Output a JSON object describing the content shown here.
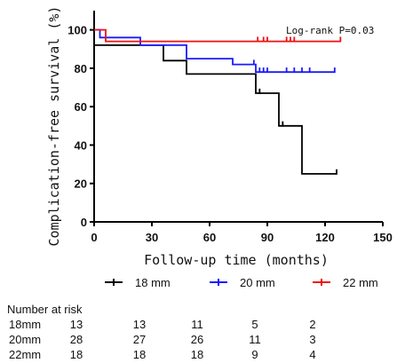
{
  "chart_data": {
    "type": "line",
    "chart_kind": "kaplan-meier",
    "xlabel": "Follow-up time (months)",
    "ylabel": "Complication-free survival (%)",
    "xlim": [
      0,
      150
    ],
    "ylim": [
      0,
      110
    ],
    "x_ticks": [
      0,
      30,
      60,
      90,
      120,
      150
    ],
    "y_ticks": [
      0,
      20,
      40,
      60,
      80,
      100
    ],
    "annotation": "Log-rank P=0.03",
    "legend_position": "bottom",
    "series": [
      {
        "name": "18 mm",
        "color": "#000000",
        "x": [
          0,
          36,
          36,
          48,
          48,
          84,
          84,
          96,
          96,
          108,
          108,
          126
        ],
        "y": [
          92,
          92,
          84,
          84,
          77,
          77,
          67,
          67,
          50,
          50,
          25,
          25
        ],
        "censored": [
          {
            "x": 86,
            "y": 68
          },
          {
            "x": 98,
            "y": 51
          },
          {
            "x": 126,
            "y": 26
          }
        ]
      },
      {
        "name": "20 mm",
        "color": "#1a1aff",
        "x": [
          0,
          3,
          3,
          24,
          24,
          48,
          48,
          72,
          72,
          84,
          84,
          125
        ],
        "y": [
          100,
          100,
          96,
          96,
          92,
          92,
          85,
          85,
          82,
          82,
          78,
          78
        ],
        "censored": [
          {
            "x": 83,
            "y": 83
          },
          {
            "x": 86,
            "y": 79
          },
          {
            "x": 88,
            "y": 79
          },
          {
            "x": 90,
            "y": 79
          },
          {
            "x": 100,
            "y": 79
          },
          {
            "x": 104,
            "y": 79
          },
          {
            "x": 108,
            "y": 79
          },
          {
            "x": 112,
            "y": 79
          },
          {
            "x": 125,
            "y": 79
          }
        ]
      },
      {
        "name": "22 mm",
        "color": "#ee1111",
        "x": [
          0,
          6,
          6,
          128
        ],
        "y": [
          100,
          100,
          94,
          94
        ],
        "censored": [
          {
            "x": 85,
            "y": 95
          },
          {
            "x": 88,
            "y": 95
          },
          {
            "x": 90,
            "y": 95
          },
          {
            "x": 100,
            "y": 95
          },
          {
            "x": 102,
            "y": 95
          },
          {
            "x": 104,
            "y": 95
          },
          {
            "x": 128,
            "y": 95
          }
        ]
      }
    ]
  },
  "risk_table": {
    "title": "Number at risk",
    "rows": [
      {
        "label": "18mm",
        "values": [
          "13",
          "13",
          "11",
          "5",
          "2"
        ]
      },
      {
        "label": "20mm",
        "values": [
          "28",
          "27",
          "26",
          "11",
          "3"
        ]
      },
      {
        "label": "22mm",
        "values": [
          "18",
          "18",
          "18",
          "9",
          "4"
        ]
      }
    ]
  }
}
